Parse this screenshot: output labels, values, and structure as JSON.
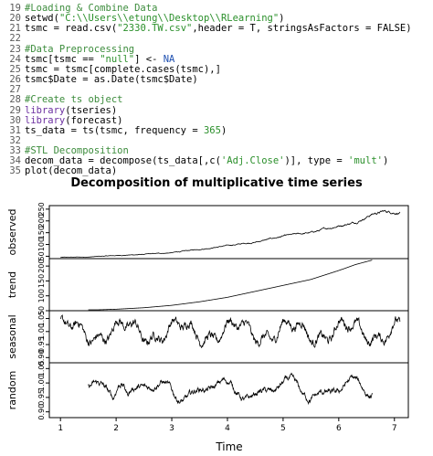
{
  "editor": {
    "lines": [
      {
        "n": "19",
        "parts": [
          {
            "t": "#Loading & Combine Data",
            "c": "comment"
          }
        ]
      },
      {
        "n": "20",
        "parts": [
          {
            "t": "setwd(",
            "c": ""
          },
          {
            "t": "\"C:\\\\Users\\\\etung\\\\Desktop\\\\RLearning\"",
            "c": "string"
          },
          {
            "t": ")",
            "c": ""
          }
        ]
      },
      {
        "n": "21",
        "parts": [
          {
            "t": "tsmc = read.csv(",
            "c": ""
          },
          {
            "t": "\"2330.TW.csv\"",
            "c": "string"
          },
          {
            "t": ",header = T, stringsAsFactors = FALSE)",
            "c": ""
          }
        ]
      },
      {
        "n": "22",
        "parts": []
      },
      {
        "n": "23",
        "parts": [
          {
            "t": "#Data Preprocessing",
            "c": "comment"
          }
        ]
      },
      {
        "n": "24",
        "parts": [
          {
            "t": "tsmc[tsmc == ",
            "c": ""
          },
          {
            "t": "\"null\"",
            "c": "string"
          },
          {
            "t": "] <- ",
            "c": ""
          },
          {
            "t": "NA",
            "c": "na"
          }
        ]
      },
      {
        "n": "25",
        "parts": [
          {
            "t": "tsmc = tsmc[complete.cases(tsmc),]",
            "c": ""
          }
        ]
      },
      {
        "n": "26",
        "parts": [
          {
            "t": "tsmc$Date = as.Date(tsmc$Date)",
            "c": ""
          }
        ]
      },
      {
        "n": "27",
        "parts": []
      },
      {
        "n": "28",
        "parts": [
          {
            "t": "#Create ts object",
            "c": "comment"
          }
        ]
      },
      {
        "n": "29",
        "parts": [
          {
            "t": "library",
            "c": "kw"
          },
          {
            "t": "(tseries)",
            "c": ""
          }
        ]
      },
      {
        "n": "30",
        "parts": [
          {
            "t": "library",
            "c": "kw"
          },
          {
            "t": "(forecast)",
            "c": ""
          }
        ]
      },
      {
        "n": "31",
        "parts": [
          {
            "t": "ts_data = ts(tsmc, frequency = ",
            "c": ""
          },
          {
            "t": "365",
            "c": "num"
          },
          {
            "t": ")",
            "c": ""
          }
        ]
      },
      {
        "n": "32",
        "parts": []
      },
      {
        "n": "33",
        "parts": [
          {
            "t": "#STL Decomposition",
            "c": "comment"
          }
        ]
      },
      {
        "n": "34",
        "parts": [
          {
            "t": "decom_data = decompose(ts_data[,c(",
            "c": ""
          },
          {
            "t": "'Adj.Close'",
            "c": "string"
          },
          {
            "t": ")], type = ",
            "c": ""
          },
          {
            "t": "'mult'",
            "c": "string"
          },
          {
            "t": ")",
            "c": ""
          }
        ]
      },
      {
        "n": "35",
        "parts": [
          {
            "t": "plot(decom_data)",
            "c": ""
          }
        ]
      }
    ]
  },
  "colors": {
    "comment": "#3c8c3c",
    "string": "#2a8f2a",
    "kw": "#6b2fa0",
    "num": "#2a8f2a",
    "na": "#1e4fb0"
  },
  "plot": {
    "title": "Decomposition of multiplicative time series",
    "xlabel": "Time",
    "x_ticks": [
      "1",
      "2",
      "3",
      "4",
      "5",
      "6",
      "7"
    ]
  },
  "chart_data": [
    {
      "type": "line",
      "panel": "observed",
      "ylabel": "observed",
      "yticks": [
        "50",
        "100",
        "150",
        "200",
        "250"
      ],
      "ylim": [
        40,
        265
      ],
      "x_range": [
        1,
        7.1
      ],
      "keypoints": [
        [
          1,
          45
        ],
        [
          1.5,
          47
        ],
        [
          2,
          53
        ],
        [
          2.5,
          58
        ],
        [
          3,
          65
        ],
        [
          3.5,
          80
        ],
        [
          4,
          95
        ],
        [
          4.5,
          110
        ],
        [
          5,
          135
        ],
        [
          5.5,
          150
        ],
        [
          6,
          180
        ],
        [
          6.3,
          195
        ],
        [
          6.6,
          230
        ],
        [
          6.8,
          240
        ],
        [
          7.1,
          236
        ]
      ]
    },
    {
      "type": "line",
      "panel": "trend",
      "ylabel": "trend",
      "yticks": [
        "50",
        "100",
        "150",
        "200"
      ],
      "ylim": [
        50,
        225
      ],
      "x_range": [
        1.5,
        6.6
      ],
      "keypoints": [
        [
          1.5,
          52
        ],
        [
          2,
          55
        ],
        [
          2.5,
          60
        ],
        [
          3,
          68
        ],
        [
          3.5,
          80
        ],
        [
          4,
          95
        ],
        [
          4.5,
          115
        ],
        [
          5,
          135
        ],
        [
          5.5,
          155
        ],
        [
          6,
          185
        ],
        [
          6.3,
          205
        ],
        [
          6.6,
          220
        ]
      ]
    },
    {
      "type": "line",
      "panel": "seasonal",
      "ylabel": "seasonal",
      "yticks": [
        "0.90",
        "0.95",
        "1.00",
        "1.05"
      ],
      "ylim": [
        0.88,
        1.08
      ],
      "x_range": [
        1,
        7.1
      ]
    },
    {
      "type": "line",
      "panel": "random",
      "ylabel": "random",
      "yticks": [
        "0.90",
        "0.95",
        "1.00",
        "1.05"
      ],
      "ylim": [
        0.88,
        1.07
      ],
      "x_range": [
        1.5,
        6.6
      ]
    }
  ]
}
